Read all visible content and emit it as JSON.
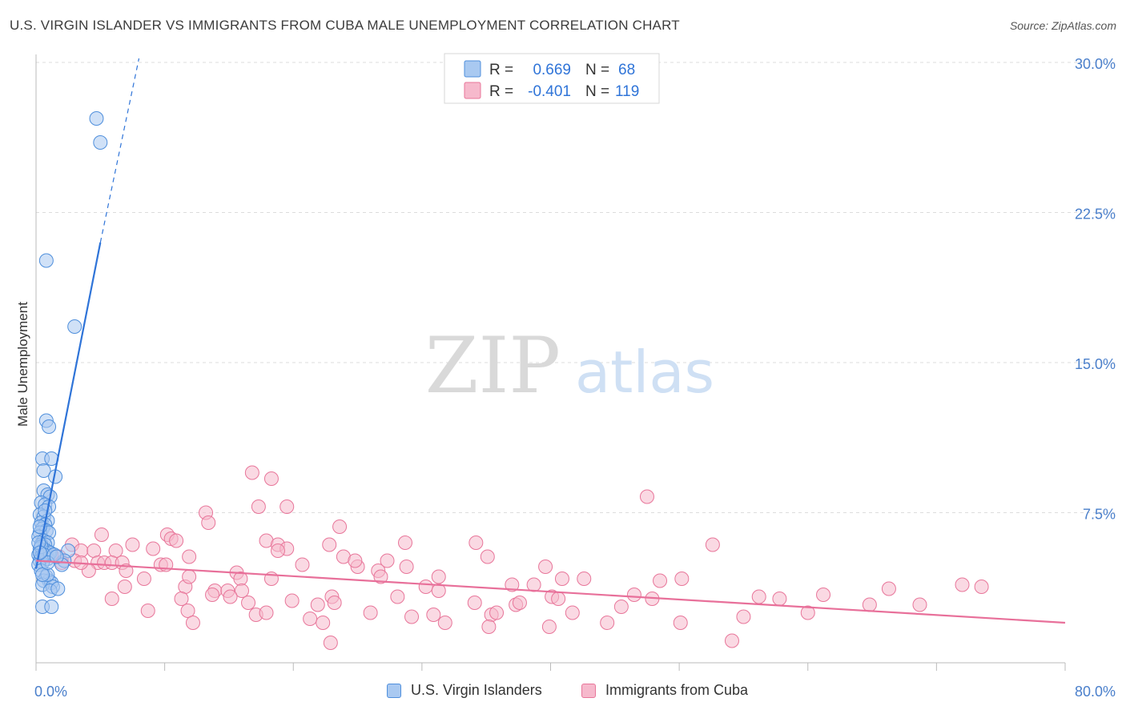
{
  "title": "U.S. VIRGIN ISLANDER VS IMMIGRANTS FROM CUBA MALE UNEMPLOYMENT CORRELATION CHART",
  "source": "Source: ZipAtlas.com",
  "watermark": {
    "zip": "ZIP",
    "atlas": "atlas"
  },
  "colors": {
    "blue_fill": "#a9c9f1",
    "blue_stroke": "#4f8fdc",
    "blue_line": "#2f74d8",
    "pink_fill": "#f6b9cc",
    "pink_stroke": "#e8769a",
    "pink_line": "#e8709a",
    "axis_text": "#4a7fcb",
    "grid": "#dcdcdc"
  },
  "legend": {
    "row1": {
      "r_label": "R =",
      "r_value": "0.669",
      "n_label": "N =",
      "n_value": "68"
    },
    "row2": {
      "r_label": "R =",
      "r_value": "-0.401",
      "n_label": "N =",
      "n_value": "119"
    }
  },
  "bottom_legend": {
    "series1": "U.S. Virgin Islanders",
    "series2": "Immigrants from Cuba"
  },
  "chart_data": {
    "type": "scatter",
    "title": "U.S. VIRGIN ISLANDER VS IMMIGRANTS FROM CUBA MALE UNEMPLOYMENT CORRELATION CHART",
    "xlabel": "",
    "ylabel": "Male Unemployment",
    "xlim": [
      0,
      80
    ],
    "ylim": [
      0,
      30
    ],
    "x_tick_labels": [
      "0.0%",
      "80.0%"
    ],
    "y_ticks": [
      7.5,
      15.0,
      22.5,
      30.0
    ],
    "y_tick_labels": [
      "7.5%",
      "15.0%",
      "22.5%",
      "30.0%"
    ],
    "series": [
      {
        "name": "U.S. Virgin Islanders",
        "r": 0.669,
        "n": 68,
        "trend": {
          "x": [
            0.0,
            5.0
          ],
          "y": [
            4.7,
            21.0
          ],
          "dashed_to": [
            8.0,
            30.2
          ]
        },
        "points": [
          [
            4.7,
            27.2
          ],
          [
            5.0,
            26.0
          ],
          [
            0.8,
            20.1
          ],
          [
            3.0,
            16.8
          ],
          [
            0.8,
            12.1
          ],
          [
            1.0,
            11.8
          ],
          [
            0.5,
            10.2
          ],
          [
            1.2,
            10.2
          ],
          [
            0.6,
            9.6
          ],
          [
            1.5,
            9.3
          ],
          [
            0.6,
            8.6
          ],
          [
            0.9,
            8.4
          ],
          [
            1.1,
            8.3
          ],
          [
            0.4,
            8.0
          ],
          [
            0.7,
            7.9
          ],
          [
            1.0,
            7.8
          ],
          [
            0.3,
            7.4
          ],
          [
            0.6,
            7.3
          ],
          [
            0.9,
            7.1
          ],
          [
            0.4,
            7.0
          ],
          [
            0.7,
            6.9
          ],
          [
            0.5,
            6.7
          ],
          [
            0.8,
            6.6
          ],
          [
            0.3,
            6.5
          ],
          [
            1.0,
            6.5
          ],
          [
            0.2,
            6.3
          ],
          [
            0.6,
            6.1
          ],
          [
            0.9,
            6.0
          ],
          [
            0.4,
            5.9
          ],
          [
            0.7,
            5.9
          ],
          [
            0.3,
            5.7
          ],
          [
            0.5,
            5.6
          ],
          [
            0.8,
            5.6
          ],
          [
            1.0,
            5.5
          ],
          [
            0.2,
            5.4
          ],
          [
            0.4,
            5.3
          ],
          [
            0.6,
            5.3
          ],
          [
            0.9,
            5.2
          ],
          [
            0.3,
            5.1
          ],
          [
            0.5,
            5.0
          ],
          [
            0.2,
            4.9
          ],
          [
            0.7,
            5.5
          ],
          [
            1.1,
            5.5
          ],
          [
            2.5,
            5.6
          ],
          [
            2.2,
            5.1
          ],
          [
            2.0,
            4.9
          ],
          [
            0.4,
            4.6
          ],
          [
            0.8,
            4.3
          ],
          [
            1.0,
            4.1
          ],
          [
            0.6,
            4.1
          ],
          [
            1.2,
            4.0
          ],
          [
            0.5,
            3.9
          ],
          [
            1.3,
            3.8
          ],
          [
            1.1,
            3.6
          ],
          [
            1.7,
            3.7
          ],
          [
            0.5,
            2.8
          ],
          [
            1.2,
            2.8
          ],
          [
            0.9,
            4.4
          ],
          [
            0.3,
            6.8
          ],
          [
            0.7,
            7.6
          ],
          [
            0.4,
            5.8
          ],
          [
            0.6,
            5.4
          ],
          [
            1.4,
            5.4
          ],
          [
            0.2,
            6.0
          ],
          [
            0.5,
            4.4
          ],
          [
            0.9,
            5.0
          ],
          [
            0.3,
            5.5
          ],
          [
            1.6,
            5.3
          ]
        ]
      },
      {
        "name": "Immigrants from Cuba",
        "r": -0.401,
        "n": 119,
        "trend": {
          "x": [
            0.0,
            80.0
          ],
          "y": [
            5.1,
            2.0
          ]
        },
        "points": [
          [
            16.8,
            9.5
          ],
          [
            18.3,
            9.2
          ],
          [
            47.5,
            8.3
          ],
          [
            17.3,
            7.8
          ],
          [
            19.5,
            7.8
          ],
          [
            13.2,
            7.5
          ],
          [
            13.4,
            7.0
          ],
          [
            23.6,
            6.8
          ],
          [
            5.1,
            6.4
          ],
          [
            10.2,
            6.4
          ],
          [
            10.5,
            6.2
          ],
          [
            17.9,
            6.1
          ],
          [
            18.8,
            5.9
          ],
          [
            19.5,
            5.7
          ],
          [
            28.7,
            6.0
          ],
          [
            34.2,
            6.0
          ],
          [
            52.6,
            5.9
          ],
          [
            2.8,
            5.9
          ],
          [
            7.5,
            5.9
          ],
          [
            10.9,
            6.1
          ],
          [
            18.8,
            5.6
          ],
          [
            3.5,
            5.6
          ],
          [
            4.5,
            5.6
          ],
          [
            6.2,
            5.6
          ],
          [
            9.1,
            5.7
          ],
          [
            22.8,
            5.9
          ],
          [
            23.9,
            5.3
          ],
          [
            35.1,
            5.3
          ],
          [
            11.9,
            5.3
          ],
          [
            27.3,
            5.1
          ],
          [
            1.8,
            5.3
          ],
          [
            3.0,
            5.1
          ],
          [
            0.5,
            5.5
          ],
          [
            1.2,
            5.4
          ],
          [
            4.8,
            5.0
          ],
          [
            5.3,
            5.0
          ],
          [
            5.9,
            5.0
          ],
          [
            6.7,
            5.0
          ],
          [
            9.7,
            4.9
          ],
          [
            10.1,
            4.9
          ],
          [
            20.7,
            4.9
          ],
          [
            28.8,
            4.8
          ],
          [
            39.6,
            4.8
          ],
          [
            15.6,
            4.5
          ],
          [
            25.0,
            4.8
          ],
          [
            26.6,
            4.6
          ],
          [
            4.1,
            4.6
          ],
          [
            7.0,
            4.6
          ],
          [
            8.4,
            4.2
          ],
          [
            31.3,
            4.3
          ],
          [
            42.6,
            4.2
          ],
          [
            48.5,
            4.1
          ],
          [
            40.9,
            4.2
          ],
          [
            50.2,
            4.2
          ],
          [
            11.6,
            3.8
          ],
          [
            11.9,
            4.3
          ],
          [
            15.9,
            4.2
          ],
          [
            18.3,
            4.2
          ],
          [
            37.0,
            3.9
          ],
          [
            38.7,
            3.9
          ],
          [
            30.3,
            3.8
          ],
          [
            31.3,
            3.6
          ],
          [
            13.9,
            3.6
          ],
          [
            14.9,
            3.6
          ],
          [
            16.0,
            3.6
          ],
          [
            66.3,
            3.7
          ],
          [
            6.9,
            3.8
          ],
          [
            13.7,
            3.4
          ],
          [
            15.1,
            3.3
          ],
          [
            28.1,
            3.3
          ],
          [
            23.0,
            3.3
          ],
          [
            40.1,
            3.3
          ],
          [
            40.6,
            3.2
          ],
          [
            46.5,
            3.4
          ],
          [
            56.2,
            3.3
          ],
          [
            57.8,
            3.2
          ],
          [
            61.2,
            3.4
          ],
          [
            5.9,
            3.2
          ],
          [
            11.3,
            3.2
          ],
          [
            19.9,
            3.1
          ],
          [
            34.1,
            3.0
          ],
          [
            37.3,
            2.9
          ],
          [
            47.9,
            3.2
          ],
          [
            68.7,
            2.9
          ],
          [
            64.8,
            2.9
          ],
          [
            45.5,
            2.8
          ],
          [
            37.6,
            3.0
          ],
          [
            23.2,
            3.0
          ],
          [
            21.9,
            2.9
          ],
          [
            16.5,
            3.0
          ],
          [
            8.7,
            2.6
          ],
          [
            11.8,
            2.6
          ],
          [
            17.1,
            2.4
          ],
          [
            17.9,
            2.5
          ],
          [
            26.0,
            2.5
          ],
          [
            30.9,
            2.4
          ],
          [
            41.7,
            2.5
          ],
          [
            35.4,
            2.4
          ],
          [
            35.8,
            2.5
          ],
          [
            21.3,
            2.2
          ],
          [
            22.3,
            2.0
          ],
          [
            29.2,
            2.3
          ],
          [
            31.8,
            2.0
          ],
          [
            12.2,
            2.0
          ],
          [
            44.4,
            2.0
          ],
          [
            50.1,
            2.0
          ],
          [
            55.0,
            2.3
          ],
          [
            35.2,
            1.8
          ],
          [
            39.9,
            1.8
          ],
          [
            22.9,
            1.0
          ],
          [
            54.1,
            1.1
          ],
          [
            72.0,
            3.9
          ],
          [
            73.5,
            3.8
          ],
          [
            60.0,
            2.5
          ],
          [
            24.8,
            5.1
          ],
          [
            26.8,
            4.3
          ],
          [
            2.0,
            5.0
          ],
          [
            3.5,
            5.0
          ],
          [
            0.8,
            5.5
          ]
        ]
      }
    ]
  }
}
